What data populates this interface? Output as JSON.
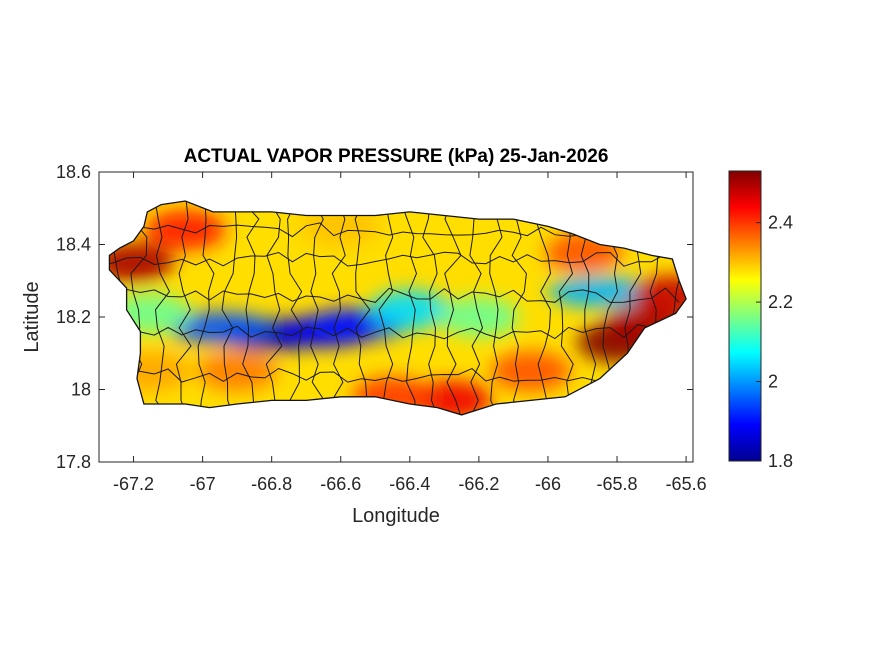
{
  "chart_data": {
    "type": "heatmap",
    "title": "ACTUAL VAPOR PRESSURE (kPa) 25-Jan-2026",
    "xlabel": "Longitude",
    "ylabel": "Latitude",
    "xlim": [
      -67.3,
      -65.58
    ],
    "ylim": [
      17.8,
      18.6
    ],
    "x_ticks": [
      -67.2,
      -67.0,
      -66.8,
      -66.6,
      -66.4,
      -66.2,
      -66.0,
      -65.8,
      -65.6
    ],
    "x_tick_labels": [
      "-67.2",
      "-67",
      "-66.8",
      "-66.6",
      "-66.4",
      "-66.2",
      "-66",
      "-65.8",
      "-65.6"
    ],
    "y_ticks": [
      17.8,
      18.0,
      18.2,
      18.4,
      18.6
    ],
    "y_tick_labels": [
      "17.8",
      "18",
      "18.2",
      "18.4",
      "18.6"
    ],
    "colorbar": {
      "colormap": "jet",
      "range": [
        1.8,
        2.53
      ],
      "ticks": [
        1.8,
        2.0,
        2.2,
        2.4
      ],
      "tick_labels": [
        "1.8",
        "2",
        "2.2",
        "2.4"
      ]
    },
    "grid": false,
    "region": "Puerto Rico",
    "island_outline": [
      [
        -67.27,
        18.37
      ],
      [
        -67.24,
        18.39
      ],
      [
        -67.2,
        18.41
      ],
      [
        -67.17,
        18.45
      ],
      [
        -67.16,
        18.49
      ],
      [
        -67.12,
        18.51
      ],
      [
        -67.05,
        18.52
      ],
      [
        -66.97,
        18.49
      ],
      [
        -66.9,
        18.49
      ],
      [
        -66.8,
        18.49
      ],
      [
        -66.7,
        18.48
      ],
      [
        -66.6,
        18.48
      ],
      [
        -66.5,
        18.48
      ],
      [
        -66.4,
        18.49
      ],
      [
        -66.3,
        18.48
      ],
      [
        -66.2,
        18.47
      ],
      [
        -66.1,
        18.47
      ],
      [
        -66.0,
        18.45
      ],
      [
        -65.93,
        18.43
      ],
      [
        -65.85,
        18.4
      ],
      [
        -65.78,
        18.39
      ],
      [
        -65.7,
        18.37
      ],
      [
        -65.64,
        18.36
      ],
      [
        -65.62,
        18.3
      ],
      [
        -65.6,
        18.25
      ],
      [
        -65.63,
        18.21
      ],
      [
        -65.72,
        18.17
      ],
      [
        -65.77,
        18.1
      ],
      [
        -65.85,
        18.03
      ],
      [
        -65.95,
        17.98
      ],
      [
        -66.05,
        17.97
      ],
      [
        -66.15,
        17.96
      ],
      [
        -66.25,
        17.93
      ],
      [
        -66.32,
        17.95
      ],
      [
        -66.4,
        17.96
      ],
      [
        -66.5,
        17.98
      ],
      [
        -66.6,
        17.98
      ],
      [
        -66.7,
        17.97
      ],
      [
        -66.8,
        17.97
      ],
      [
        -66.9,
        17.96
      ],
      [
        -66.98,
        17.95
      ],
      [
        -67.05,
        17.96
      ],
      [
        -67.12,
        17.96
      ],
      [
        -67.17,
        17.96
      ],
      [
        -67.19,
        18.03
      ],
      [
        -67.18,
        18.1
      ],
      [
        -67.18,
        18.16
      ],
      [
        -67.22,
        18.22
      ],
      [
        -67.22,
        18.28
      ],
      [
        -67.27,
        18.33
      ]
    ],
    "field_anomalies": [
      {
        "lon": -66.8,
        "lat": 18.15,
        "value": 1.82
      },
      {
        "lon": -66.65,
        "lat": 18.16,
        "value": 1.88
      },
      {
        "lon": -66.55,
        "lat": 18.18,
        "value": 1.9
      },
      {
        "lon": -66.95,
        "lat": 18.17,
        "value": 1.95
      },
      {
        "lon": -66.4,
        "lat": 18.22,
        "value": 2.05
      },
      {
        "lon": -65.85,
        "lat": 18.27,
        "value": 2.02
      },
      {
        "lon": -66.2,
        "lat": 18.2,
        "value": 2.15
      },
      {
        "lon": -67.15,
        "lat": 18.21,
        "value": 2.15
      },
      {
        "lon": -66.9,
        "lat": 18.05,
        "value": 2.35
      },
      {
        "lon": -67.15,
        "lat": 18.05,
        "value": 2.32
      },
      {
        "lon": -67.2,
        "lat": 18.35,
        "value": 2.5
      },
      {
        "lon": -67.05,
        "lat": 18.44,
        "value": 2.42
      },
      {
        "lon": -66.28,
        "lat": 17.97,
        "value": 2.45
      },
      {
        "lon": -65.8,
        "lat": 18.13,
        "value": 2.53
      },
      {
        "lon": -65.72,
        "lat": 18.18,
        "value": 2.5
      },
      {
        "lon": -65.64,
        "lat": 18.26,
        "value": 2.48
      },
      {
        "lon": -66.45,
        "lat": 17.98,
        "value": 2.4
      },
      {
        "lon": -66.05,
        "lat": 18.05,
        "value": 2.38
      },
      {
        "lon": -66.6,
        "lat": 18.45,
        "value": 2.3
      },
      {
        "lon": -66.1,
        "lat": 18.42,
        "value": 2.28
      },
      {
        "lon": -65.9,
        "lat": 18.38,
        "value": 2.38
      }
    ],
    "base_value": 2.28
  }
}
